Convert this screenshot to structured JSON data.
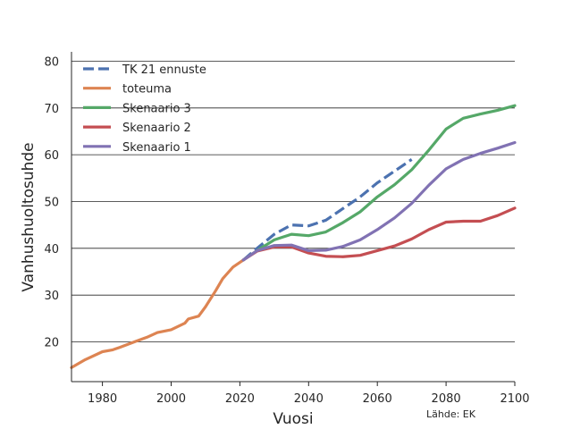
{
  "chart_data": {
    "type": "line",
    "title": "",
    "xlabel": "Vuosi",
    "ylabel": "Vanhushuoltosuhde",
    "source": "Lähde: EK",
    "xlim": [
      1971,
      2100
    ],
    "ylim": [
      11.5,
      82
    ],
    "xticks": [
      1980,
      2000,
      2020,
      2040,
      2060,
      2080,
      2100
    ],
    "yticks": [
      20,
      30,
      40,
      50,
      60,
      70,
      80
    ],
    "grid": "horizontal",
    "legend_position": "top-left",
    "series": [
      {
        "name": "TK 21 ennuste",
        "color": "#4c72b0",
        "dashed": true,
        "points": [
          [
            2021,
            37.5
          ],
          [
            2025,
            40.0
          ],
          [
            2030,
            43.0
          ],
          [
            2035,
            45.0
          ],
          [
            2040,
            44.8
          ],
          [
            2045,
            46.0
          ],
          [
            2050,
            48.5
          ],
          [
            2055,
            51.0
          ],
          [
            2060,
            54.0
          ],
          [
            2065,
            56.5
          ],
          [
            2070,
            59.0
          ]
        ]
      },
      {
        "name": "toteuma",
        "color": "#dd8452",
        "dashed": false,
        "points": [
          [
            1971,
            14.5
          ],
          [
            1975,
            16.2
          ],
          [
            1980,
            17.9
          ],
          [
            1983,
            18.3
          ],
          [
            1985,
            18.8
          ],
          [
            1990,
            20.2
          ],
          [
            1993,
            21.0
          ],
          [
            1996,
            22.0
          ],
          [
            2000,
            22.6
          ],
          [
            2004,
            24.0
          ],
          [
            2005,
            24.9
          ],
          [
            2008,
            25.5
          ],
          [
            2010,
            27.5
          ],
          [
            2013,
            31.0
          ],
          [
            2015,
            33.5
          ],
          [
            2018,
            36.0
          ],
          [
            2021,
            37.5
          ]
        ]
      },
      {
        "name": "Skenaario 3",
        "color": "#55a868",
        "dashed": false,
        "points": [
          [
            2021,
            37.5
          ],
          [
            2025,
            39.5
          ],
          [
            2030,
            41.8
          ],
          [
            2035,
            43.0
          ],
          [
            2040,
            42.7
          ],
          [
            2045,
            43.5
          ],
          [
            2050,
            45.5
          ],
          [
            2055,
            47.8
          ],
          [
            2060,
            51.0
          ],
          [
            2065,
            53.6
          ],
          [
            2070,
            56.8
          ],
          [
            2075,
            61.0
          ],
          [
            2080,
            65.5
          ],
          [
            2085,
            67.8
          ],
          [
            2090,
            68.7
          ],
          [
            2095,
            69.5
          ],
          [
            2100,
            70.5
          ]
        ]
      },
      {
        "name": "Skenaario 2",
        "color": "#c44e52",
        "dashed": false,
        "points": [
          [
            2021,
            37.5
          ],
          [
            2025,
            39.4
          ],
          [
            2030,
            40.3
          ],
          [
            2035,
            40.3
          ],
          [
            2040,
            39.0
          ],
          [
            2045,
            38.3
          ],
          [
            2050,
            38.2
          ],
          [
            2055,
            38.5
          ],
          [
            2060,
            39.5
          ],
          [
            2065,
            40.5
          ],
          [
            2070,
            42.0
          ],
          [
            2075,
            44.0
          ],
          [
            2080,
            45.6
          ],
          [
            2085,
            45.8
          ],
          [
            2090,
            45.8
          ],
          [
            2095,
            47.0
          ],
          [
            2100,
            48.6
          ]
        ]
      },
      {
        "name": "Skenaario 1",
        "color": "#8172b3",
        "dashed": false,
        "points": [
          [
            2021,
            37.5
          ],
          [
            2025,
            39.5
          ],
          [
            2030,
            40.6
          ],
          [
            2035,
            40.7
          ],
          [
            2040,
            39.5
          ],
          [
            2045,
            39.6
          ],
          [
            2050,
            40.4
          ],
          [
            2055,
            41.8
          ],
          [
            2060,
            44.0
          ],
          [
            2065,
            46.5
          ],
          [
            2070,
            49.6
          ],
          [
            2075,
            53.5
          ],
          [
            2080,
            57.0
          ],
          [
            2085,
            59.0
          ],
          [
            2090,
            60.3
          ],
          [
            2095,
            61.4
          ],
          [
            2100,
            62.6
          ]
        ]
      }
    ]
  }
}
